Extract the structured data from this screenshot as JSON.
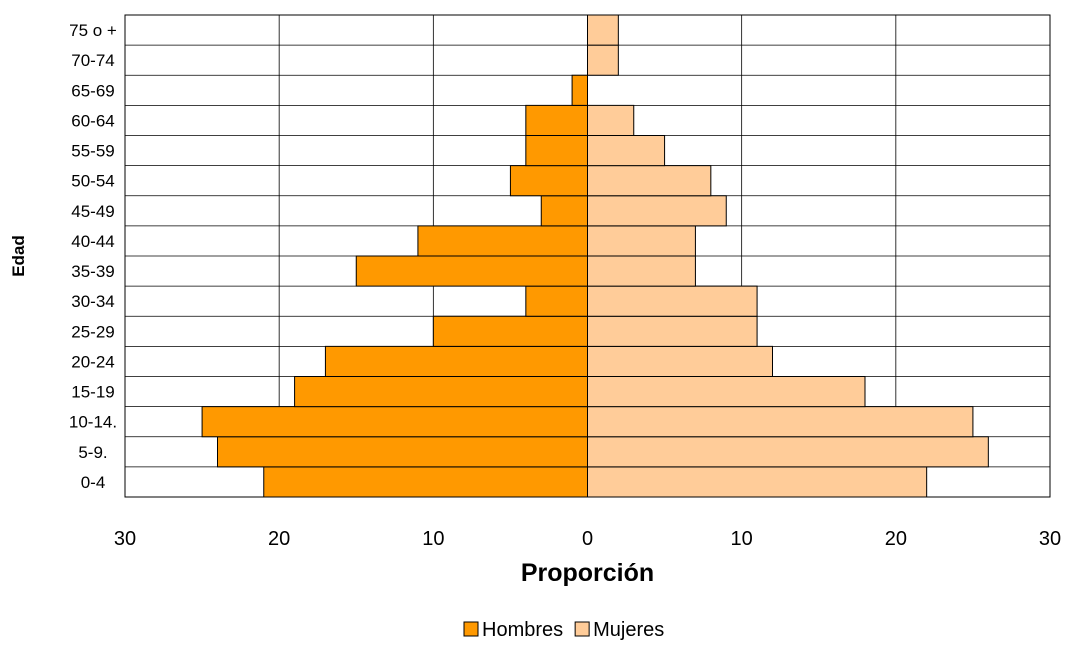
{
  "chart_data": {
    "type": "bar",
    "orientation": "horizontal",
    "layout": "population-pyramid",
    "xlabel": "Proporción",
    "ylabel": "Edad",
    "xlim": [
      -30,
      30
    ],
    "x_ticks": [
      {
        "value": -30,
        "label": "30"
      },
      {
        "value": -20,
        "label": "20"
      },
      {
        "value": -10,
        "label": "10"
      },
      {
        "value": 0,
        "label": "0"
      },
      {
        "value": 10,
        "label": "10"
      },
      {
        "value": 20,
        "label": "20"
      },
      {
        "value": 30,
        "label": "30"
      }
    ],
    "grid": true,
    "legend_position": "bottom",
    "categories": [
      "0-4",
      "5-9.",
      "10-14.",
      "15-19",
      "20-24",
      "25-29",
      "30-34",
      "35-39",
      "40-44",
      "45-49",
      "50-54",
      "55-59",
      "60-64",
      "65-69",
      "70-74",
      "75 o +"
    ],
    "series": [
      {
        "name": "Hombres",
        "color": "#FF9900",
        "side": "left",
        "values": [
          21,
          24,
          25,
          19,
          17,
          10,
          4,
          15,
          11,
          3,
          5,
          4,
          4,
          1,
          0,
          0
        ]
      },
      {
        "name": "Mujeres",
        "color": "#FFCC99",
        "side": "right",
        "values": [
          22,
          26,
          25,
          18,
          12,
          11,
          11,
          7,
          7,
          9,
          8,
          5,
          3,
          0,
          2,
          2
        ]
      }
    ]
  }
}
